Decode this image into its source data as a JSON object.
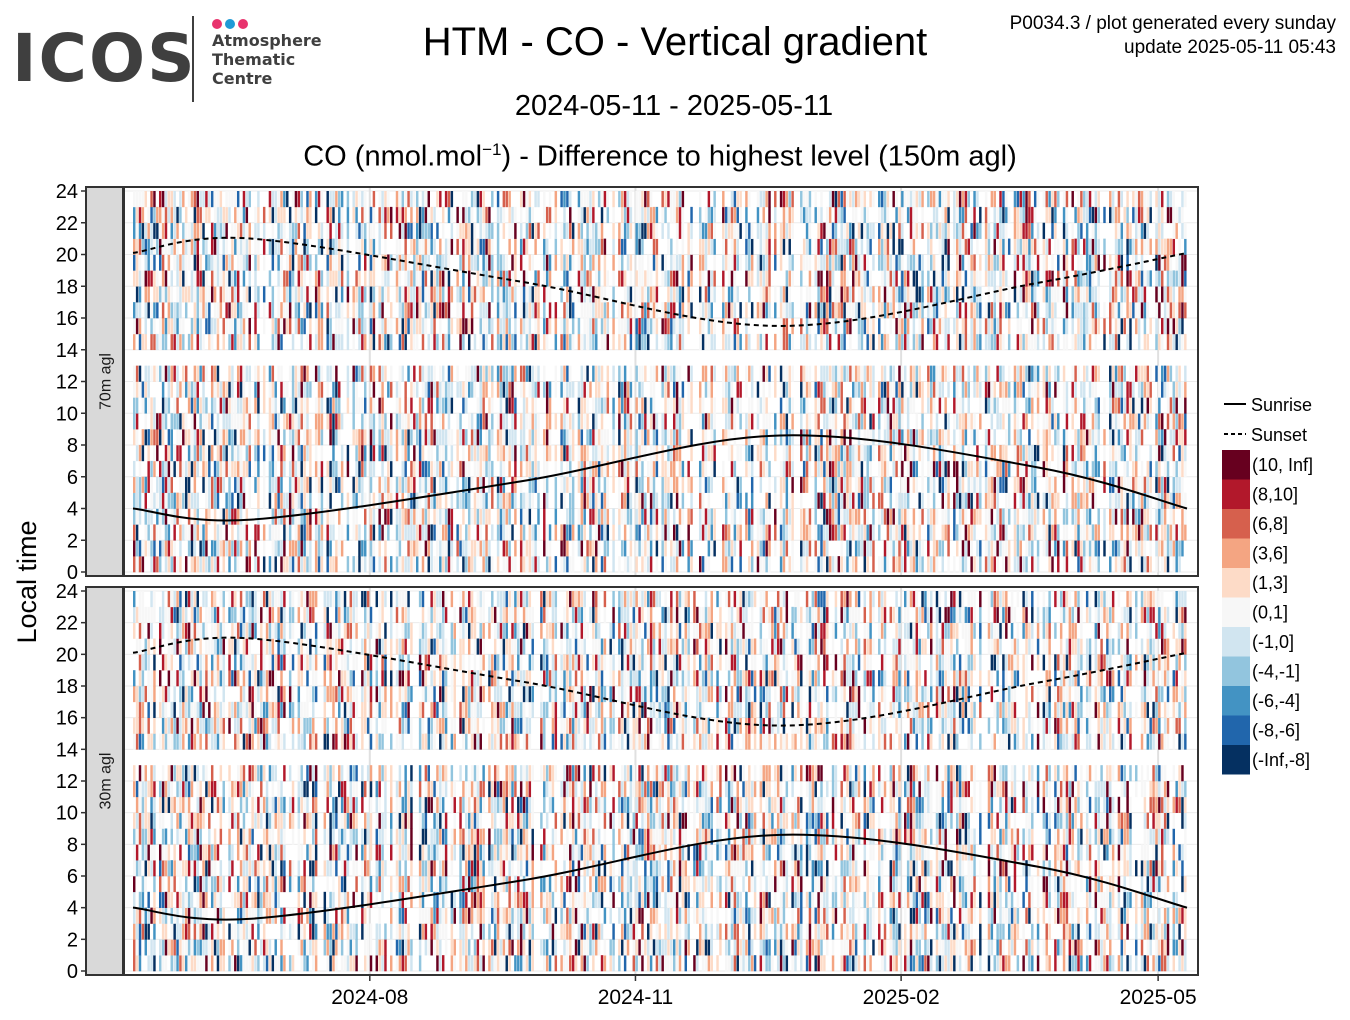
{
  "logo": {
    "word": "ICOS",
    "lines": [
      "Atmosphere",
      "Thematic",
      "Centre"
    ],
    "dot_colors": [
      "#e8336d",
      "#1e9ad6",
      "#e8336d"
    ]
  },
  "header": {
    "title": "HTM - CO - Vertical gradient",
    "date_range": "2024-05-11 - 2025-05-11",
    "subtitle_pre": "CO (nmol.mol",
    "subtitle_sup": "−1",
    "subtitle_post": ") - Difference to highest level (150m agl)",
    "meta_line1": "P0034.3 / plot generated every sunday",
    "meta_line2": "update  2025-05-11 05:43"
  },
  "chart_data": {
    "type": "heatmap",
    "x_start": "2024-05-11",
    "x_end": "2025-05-11",
    "x_ticks": [
      "2024-08",
      "2024-11",
      "2025-02",
      "2025-05"
    ],
    "x_tick_dates": [
      "2024-08-01",
      "2024-11-01",
      "2025-02-01",
      "2025-05-01"
    ],
    "ylabel": "Local time",
    "ylim": [
      0,
      24
    ],
    "y_ticks": [
      0,
      2,
      4,
      6,
      8,
      10,
      12,
      14,
      16,
      18,
      20,
      22,
      24
    ],
    "facets": [
      "70m agl",
      "30m agl"
    ],
    "legend_lines": [
      {
        "label": "Sunrise",
        "style": "solid"
      },
      {
        "label": "Sunset",
        "style": "dashed"
      }
    ],
    "sunrise": {
      "dates": [
        "2024-05-11",
        "2024-06-21",
        "2024-09-22",
        "2024-12-21",
        "2025-03-20",
        "2025-05-11"
      ],
      "hours": [
        4.0,
        3.3,
        5.7,
        8.6,
        6.6,
        4.0
      ]
    },
    "sunset": {
      "dates": [
        "2024-05-11",
        "2024-06-21",
        "2024-09-22",
        "2024-12-21",
        "2025-03-20",
        "2025-05-11"
      ],
      "hours": [
        20.1,
        21.0,
        18.3,
        15.5,
        18.2,
        20.1
      ]
    },
    "color_bins": [
      {
        "label": "(10, Inf]",
        "color": "#67001f"
      },
      {
        "label": "(8,10]",
        "color": "#b2182b"
      },
      {
        "label": "(6,8]",
        "color": "#d6604d"
      },
      {
        "label": "(3,6]",
        "color": "#f4a582"
      },
      {
        "label": "(1,3]",
        "color": "#fddbc7"
      },
      {
        "label": "(0,1]",
        "color": "#f7f7f7"
      },
      {
        "label": "(-1,0]",
        "color": "#d1e5f0"
      },
      {
        "label": "(-4,-1]",
        "color": "#92c5de"
      },
      {
        "label": "(-6,-4]",
        "color": "#4393c3"
      },
      {
        "label": "(-8,-6]",
        "color": "#2166ac"
      },
      {
        "label": "(-Inf,-8]",
        "color": "#053061"
      }
    ],
    "missing_band_hours": [
      13,
      14
    ]
  }
}
